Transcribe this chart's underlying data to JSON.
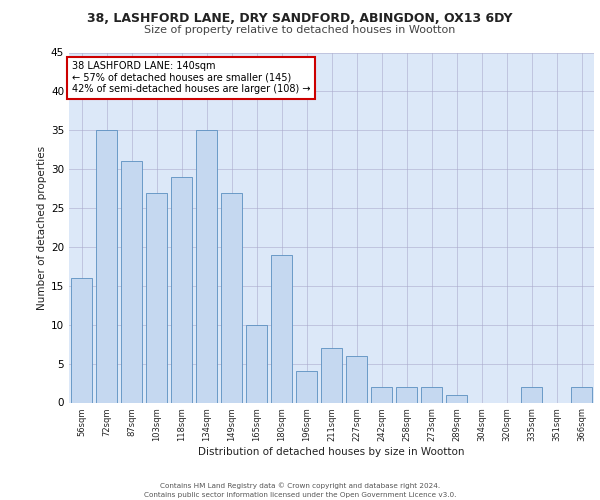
{
  "title1": "38, LASHFORD LANE, DRY SANDFORD, ABINGDON, OX13 6DY",
  "title2": "Size of property relative to detached houses in Wootton",
  "xlabel": "Distribution of detached houses by size in Wootton",
  "ylabel": "Number of detached properties",
  "categories": [
    "56sqm",
    "72sqm",
    "87sqm",
    "103sqm",
    "118sqm",
    "134sqm",
    "149sqm",
    "165sqm",
    "180sqm",
    "196sqm",
    "211sqm",
    "227sqm",
    "242sqm",
    "258sqm",
    "273sqm",
    "289sqm",
    "304sqm",
    "320sqm",
    "335sqm",
    "351sqm",
    "366sqm"
  ],
  "values": [
    16,
    35,
    31,
    27,
    29,
    35,
    27,
    10,
    19,
    4,
    7,
    6,
    2,
    2,
    2,
    1,
    0,
    0,
    2,
    0,
    2
  ],
  "bar_color": "#c5d8f0",
  "bar_edge_color": "#5a8fc0",
  "annotation_text": "38 LASHFORD LANE: 140sqm\n← 57% of detached houses are smaller (145)\n42% of semi-detached houses are larger (108) →",
  "annotation_box_color": "#ffffff",
  "annotation_box_edge_color": "#cc0000",
  "bg_color": "#dce8f8",
  "ylim": [
    0,
    45
  ],
  "yticks": [
    0,
    5,
    10,
    15,
    20,
    25,
    30,
    35,
    40,
    45
  ],
  "footer1": "Contains HM Land Registry data © Crown copyright and database right 2024.",
  "footer2": "Contains public sector information licensed under the Open Government Licence v3.0."
}
